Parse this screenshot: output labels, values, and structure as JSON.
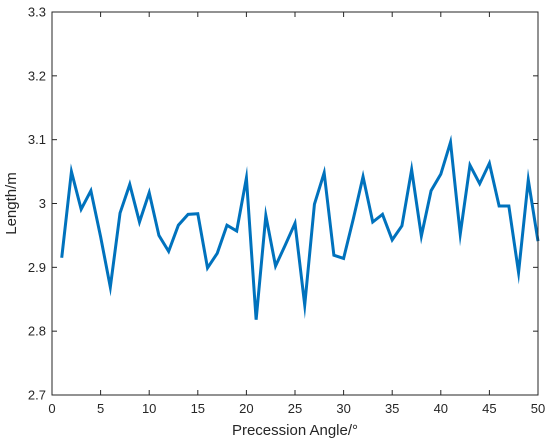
{
  "chart_data": {
    "type": "line",
    "xlabel": "Precession Angle/°",
    "ylabel": "Length/m",
    "xlim": [
      0,
      50
    ],
    "ylim": [
      2.7,
      3.3
    ],
    "xticks": [
      0,
      5,
      10,
      15,
      20,
      25,
      30,
      35,
      40,
      45,
      50
    ],
    "yticks": [
      2.7,
      2.8,
      2.9,
      3.0,
      3.1,
      3.2,
      3.3
    ],
    "xtick_labels": [
      "0",
      "5",
      "10",
      "15",
      "20",
      "25",
      "30",
      "35",
      "40",
      "45",
      "50"
    ],
    "ytick_labels": [
      "2.7",
      "2.8",
      "2.9",
      "3",
      "3.1",
      "3.2",
      "3.3"
    ],
    "grid": false,
    "series": [
      {
        "color": "#0072bd",
        "x": [
          1,
          2,
          3,
          4,
          5,
          6,
          7,
          8,
          9,
          10,
          11,
          12,
          13,
          14,
          15,
          16,
          17,
          18,
          19,
          20,
          21,
          22,
          23,
          24,
          25,
          26,
          27,
          28,
          29,
          30,
          31,
          32,
          33,
          34,
          35,
          36,
          37,
          38,
          39,
          40,
          41,
          42,
          43,
          44,
          45,
          46,
          47,
          48,
          49,
          50
        ],
        "values": [
          2.915,
          3.05,
          2.991,
          3.02,
          2.948,
          2.869,
          2.985,
          3.03,
          2.971,
          3.017,
          2.95,
          2.925,
          2.966,
          2.983,
          2.984,
          2.899,
          2.922,
          2.966,
          2.957,
          3.04,
          2.818,
          2.981,
          2.902,
          2.935,
          2.969,
          2.841,
          2.999,
          3.048,
          2.919,
          2.914,
          2.976,
          3.042,
          2.971,
          2.983,
          2.943,
          2.965,
          3.053,
          2.949,
          3.02,
          3.046,
          3.096,
          2.952,
          3.06,
          3.031,
          3.063,
          2.996,
          2.996,
          2.892,
          3.037,
          2.941
        ]
      }
    ]
  }
}
